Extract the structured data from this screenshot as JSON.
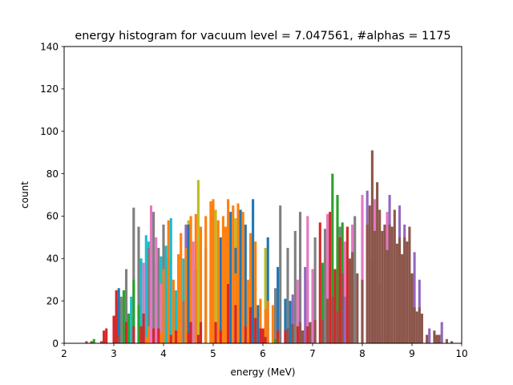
{
  "chart_data": {
    "type": "bar",
    "title": "energy histogram for vacuum level = 7.047561, #alphas = 1175",
    "xlabel": "energy (MeV)",
    "ylabel": "count",
    "xlim": [
      2,
      10
    ],
    "ylim": [
      0,
      140
    ],
    "xticks": [
      2,
      3,
      4,
      5,
      6,
      7,
      8,
      9,
      10
    ],
    "yticks": [
      0,
      20,
      40,
      60,
      80,
      100,
      120,
      140
    ],
    "grid": false,
    "legend": "none",
    "bar_width": 0.05,
    "series": [
      {
        "color": "#17becf",
        "bars": [
          [
            3.25,
            27
          ],
          [
            3.35,
            22
          ],
          [
            3.55,
            40
          ],
          [
            3.65,
            51
          ],
          [
            3.7,
            48
          ],
          [
            3.85,
            38
          ],
          [
            3.95,
            41
          ],
          [
            4.05,
            46
          ],
          [
            4.15,
            59
          ],
          [
            4.25,
            25
          ],
          [
            4.4,
            40
          ],
          [
            4.5,
            20
          ]
        ]
      },
      {
        "color": "#7f7f7f",
        "bars": [
          [
            3.15,
            22
          ],
          [
            3.25,
            35
          ],
          [
            3.4,
            64
          ],
          [
            3.5,
            55
          ],
          [
            3.7,
            45
          ],
          [
            3.8,
            62
          ],
          [
            3.9,
            45
          ],
          [
            4.0,
            56
          ],
          [
            4.4,
            20
          ],
          [
            4.5,
            30
          ],
          [
            6.05,
            8
          ],
          [
            6.25,
            26
          ],
          [
            6.35,
            65
          ],
          [
            6.5,
            45
          ],
          [
            6.65,
            53
          ],
          [
            6.75,
            62
          ],
          [
            6.9,
            30
          ],
          [
            7.05,
            50
          ],
          [
            7.25,
            54
          ],
          [
            7.55,
            55
          ],
          [
            7.6,
            35
          ],
          [
            7.85,
            60
          ],
          [
            8.0,
            65
          ],
          [
            8.2,
            40
          ]
        ]
      },
      {
        "color": "#e377c2",
        "bars": [
          [
            3.6,
            38
          ],
          [
            3.75,
            65
          ],
          [
            3.85,
            50
          ],
          [
            3.95,
            28
          ],
          [
            4.6,
            48
          ],
          [
            6.7,
            30
          ],
          [
            6.9,
            60
          ],
          [
            7.0,
            35
          ],
          [
            7.3,
            61
          ],
          [
            7.65,
            48
          ],
          [
            7.8,
            56
          ],
          [
            8.0,
            70
          ],
          [
            8.25,
            68
          ],
          [
            8.5,
            62
          ]
        ]
      },
      {
        "color": "#bcbd22",
        "bars": [
          [
            4.2,
            14
          ],
          [
            4.5,
            58
          ],
          [
            4.7,
            77
          ],
          [
            5.05,
            63
          ],
          [
            5.45,
            59
          ],
          [
            6.05,
            45
          ]
        ]
      },
      {
        "color": "#2ca02c",
        "bars": [
          [
            2.6,
            2
          ],
          [
            3.1,
            20
          ],
          [
            3.2,
            25
          ],
          [
            3.3,
            14
          ],
          [
            3.4,
            30
          ],
          [
            3.5,
            18
          ],
          [
            3.6,
            8
          ],
          [
            4.0,
            10
          ],
          [
            4.1,
            8
          ],
          [
            6.25,
            2
          ],
          [
            6.5,
            3
          ],
          [
            7.2,
            38
          ],
          [
            7.4,
            80
          ],
          [
            7.5,
            70
          ],
          [
            7.6,
            57
          ]
        ]
      },
      {
        "color": "#1f77b4",
        "bars": [
          [
            3.1,
            26
          ],
          [
            4.0,
            20
          ],
          [
            4.1,
            40
          ],
          [
            4.3,
            10
          ],
          [
            4.5,
            56
          ],
          [
            4.65,
            35
          ],
          [
            4.85,
            45
          ],
          [
            4.95,
            30
          ],
          [
            5.15,
            50
          ],
          [
            5.35,
            62
          ],
          [
            5.45,
            45
          ],
          [
            5.55,
            63
          ],
          [
            5.65,
            56
          ],
          [
            5.8,
            68
          ],
          [
            5.9,
            18
          ],
          [
            6.1,
            50
          ],
          [
            6.3,
            36
          ],
          [
            6.45,
            21
          ],
          [
            6.55,
            20
          ]
        ]
      },
      {
        "color": "#9467bd",
        "bars": [
          [
            4.45,
            56
          ],
          [
            6.6,
            23
          ],
          [
            6.85,
            36
          ],
          [
            7.65,
            22
          ],
          [
            8.1,
            72
          ],
          [
            8.35,
            28
          ],
          [
            8.55,
            70
          ],
          [
            8.75,
            65
          ],
          [
            8.85,
            56
          ],
          [
            9.05,
            43
          ],
          [
            9.15,
            30
          ],
          [
            9.35,
            7
          ],
          [
            9.6,
            10
          ]
        ]
      },
      {
        "color": "#ff7f0e",
        "bars": [
          [
            3.65,
            3
          ],
          [
            3.7,
            8
          ],
          [
            3.95,
            5
          ],
          [
            4.0,
            35
          ],
          [
            4.1,
            58
          ],
          [
            4.2,
            30
          ],
          [
            4.3,
            42
          ],
          [
            4.35,
            52
          ],
          [
            4.45,
            45
          ],
          [
            4.55,
            60
          ],
          [
            4.65,
            61
          ],
          [
            4.75,
            55
          ],
          [
            4.85,
            60
          ],
          [
            4.95,
            67
          ],
          [
            5.0,
            68
          ],
          [
            5.1,
            58
          ],
          [
            5.2,
            60
          ],
          [
            5.25,
            55
          ],
          [
            5.3,
            68
          ],
          [
            5.4,
            65
          ],
          [
            5.45,
            33
          ],
          [
            5.5,
            66
          ],
          [
            5.6,
            62
          ],
          [
            5.7,
            30
          ],
          [
            5.75,
            52
          ],
          [
            5.85,
            48
          ],
          [
            5.95,
            21
          ],
          [
            6.05,
            16
          ],
          [
            6.1,
            20
          ],
          [
            6.2,
            18
          ]
        ]
      },
      {
        "color": "#d62728",
        "bars": [
          [
            2.8,
            6
          ],
          [
            2.85,
            7
          ],
          [
            3.0,
            13
          ],
          [
            3.05,
            25
          ],
          [
            3.25,
            10
          ],
          [
            3.4,
            8
          ],
          [
            3.55,
            8
          ],
          [
            3.6,
            14
          ],
          [
            3.8,
            7
          ],
          [
            3.9,
            7
          ],
          [
            4.15,
            4
          ],
          [
            4.25,
            6
          ],
          [
            4.5,
            5
          ],
          [
            4.55,
            10
          ],
          [
            4.7,
            4
          ],
          [
            4.75,
            10
          ],
          [
            5.05,
            10
          ],
          [
            5.15,
            6
          ],
          [
            5.3,
            28
          ],
          [
            5.45,
            18
          ],
          [
            5.65,
            8
          ],
          [
            5.75,
            17
          ],
          [
            5.85,
            12
          ],
          [
            5.95,
            7
          ],
          [
            6.0,
            7
          ],
          [
            6.05,
            3
          ],
          [
            6.3,
            6
          ],
          [
            6.45,
            6
          ],
          [
            6.7,
            8
          ],
          [
            6.8,
            6
          ],
          [
            6.9,
            8
          ],
          [
            7.15,
            57
          ],
          [
            7.35,
            62
          ],
          [
            7.45,
            35
          ],
          [
            7.55,
            50
          ],
          [
            7.7,
            55
          ]
        ]
      },
      {
        "color": "#8c564b",
        "bars": [
          [
            2.45,
            1
          ],
          [
            2.55,
            1
          ],
          [
            2.75,
            1
          ],
          [
            3.1,
            4
          ],
          [
            6.5,
            7
          ],
          [
            6.6,
            9
          ],
          [
            6.75,
            10
          ],
          [
            6.8,
            6
          ],
          [
            6.95,
            10
          ],
          [
            7.05,
            11
          ],
          [
            7.2,
            11
          ],
          [
            7.3,
            21
          ],
          [
            7.4,
            22
          ],
          [
            7.5,
            15
          ],
          [
            7.6,
            33
          ],
          [
            7.75,
            40
          ],
          [
            7.8,
            43
          ],
          [
            7.9,
            33
          ],
          [
            8.0,
            30
          ],
          [
            8.1,
            56
          ],
          [
            8.15,
            65
          ],
          [
            8.2,
            91
          ],
          [
            8.25,
            53
          ],
          [
            8.3,
            76
          ],
          [
            8.35,
            63
          ],
          [
            8.4,
            53
          ],
          [
            8.45,
            56
          ],
          [
            8.5,
            44
          ],
          [
            8.55,
            56
          ],
          [
            8.6,
            55
          ],
          [
            8.65,
            63
          ],
          [
            8.7,
            47
          ],
          [
            8.75,
            50
          ],
          [
            8.8,
            42
          ],
          [
            8.85,
            50
          ],
          [
            8.9,
            48
          ],
          [
            8.95,
            55
          ],
          [
            9.0,
            33
          ],
          [
            9.05,
            17
          ],
          [
            9.1,
            15
          ],
          [
            9.15,
            17
          ],
          [
            9.2,
            14
          ],
          [
            9.3,
            4
          ],
          [
            9.45,
            6
          ],
          [
            9.5,
            4
          ],
          [
            9.55,
            4
          ],
          [
            9.7,
            2
          ],
          [
            9.8,
            1
          ]
        ]
      }
    ]
  }
}
